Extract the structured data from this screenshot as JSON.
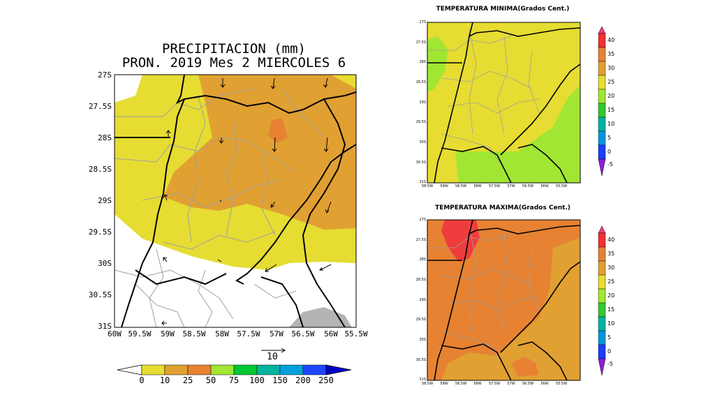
{
  "main_map": {
    "title_line1": "PRECIPITACION (mm)",
    "title_line2": "PRON. 2019 Mes 2 MIERCOLES 6",
    "lat_ticks": [
      "27S",
      "27.5S",
      "28S",
      "28.5S",
      "29S",
      "29.5S",
      "30S",
      "30.5S",
      "31S"
    ],
    "lon_ticks": [
      "60W",
      "59.5W",
      "59W",
      "58.5W",
      "58W",
      "57.5W",
      "57W",
      "56.5W",
      "56W",
      "55.5W"
    ],
    "vector_ref_label": "10",
    "colorbar_labels": [
      "0",
      "10",
      "25",
      "50",
      "75",
      "100",
      "150",
      "200",
      "250"
    ],
    "colorbar_colors": [
      "#ffffff",
      "#e6dc32",
      "#e1a032",
      "#e68232",
      "#a0e632",
      "#00c832",
      "#00b4a0",
      "#00a0dc",
      "#1e46ff",
      "#0000c8"
    ]
  },
  "min_map": {
    "title": "TEMPERATURA MINIMA(Grados Cent.)",
    "lat_ticks": [
      "27S",
      "27.5S",
      "28S",
      "28.5S",
      "29S",
      "29.5S",
      "30S",
      "30.5S",
      "31S"
    ],
    "lon_ticks": [
      "58.5W",
      "59W",
      "58.5W",
      "58W",
      "57.5W",
      "57W",
      "56.5W",
      "56W",
      "55.5W"
    ],
    "colorbar_labels": [
      "40",
      "35",
      "30",
      "25",
      "20",
      "15",
      "10",
      "5",
      "0",
      "-5"
    ]
  },
  "max_map": {
    "title": "TEMPERATURA MAXIMA(Grados Cent.)",
    "lat_ticks": [
      "27S",
      "27.5S",
      "28S",
      "28.5S",
      "29S",
      "29.5S",
      "30S",
      "30.5S",
      "31S"
    ],
    "lon_ticks": [
      "58.5W",
      "59W",
      "58.5W",
      "58W",
      "57.5W",
      "57W",
      "56.5W",
      "56W",
      "55.5W"
    ],
    "colorbar_labels": [
      "40",
      "35",
      "30",
      "25",
      "20",
      "15",
      "10",
      "5",
      "0",
      "-5"
    ]
  },
  "temp_colors": [
    "#f03c78",
    "#f03232",
    "#e68232",
    "#e1a032",
    "#e6dc32",
    "#a0e632",
    "#32c832",
    "#00b4a0",
    "#0096dc",
    "#1e3cff",
    "#8c1edc"
  ]
}
